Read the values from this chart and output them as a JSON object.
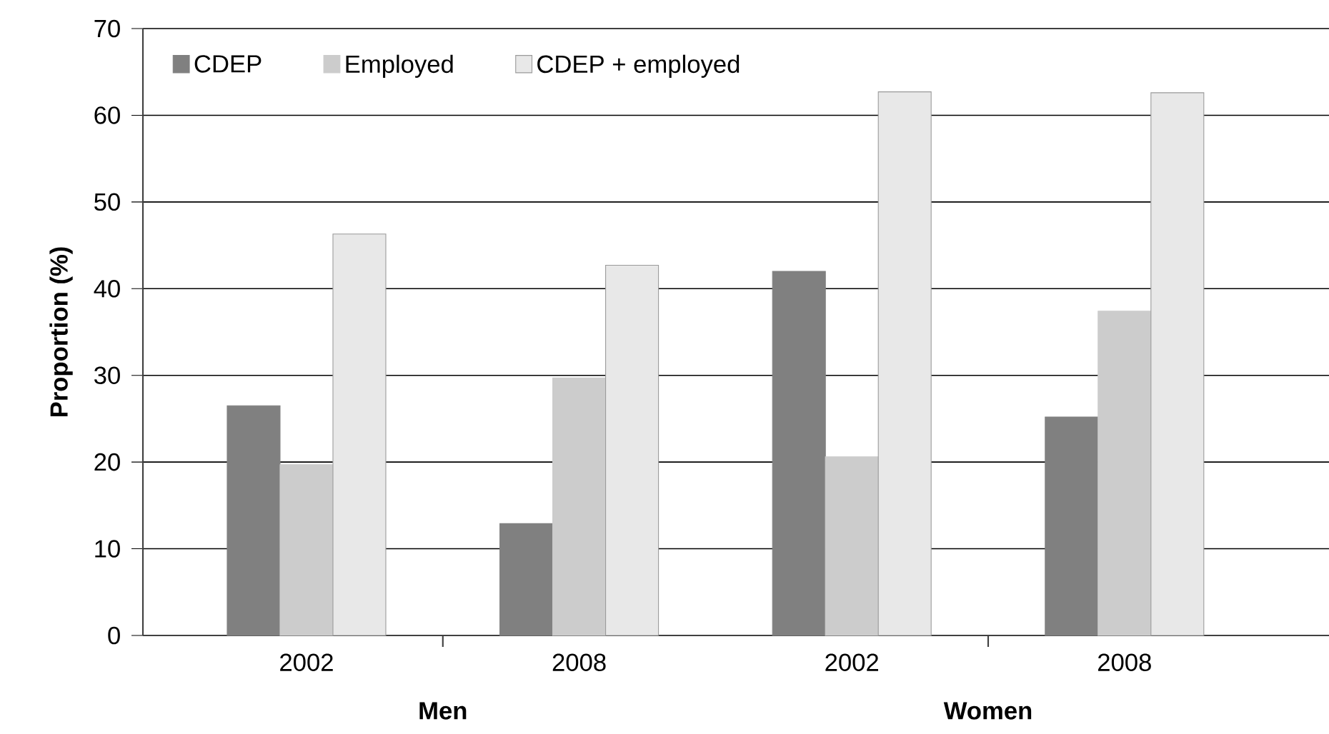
{
  "chart_data": {
    "type": "bar",
    "ylabel": "Proportion (%)",
    "categories": [
      "2002",
      "2008",
      "2002",
      "2008"
    ],
    "series": [
      {
        "name": "CDEP",
        "color": "#808080",
        "values": [
          26.5,
          12.9,
          42.0,
          25.2
        ]
      },
      {
        "name": "Employed",
        "color": "#cccccc",
        "values": [
          19.7,
          29.7,
          20.6,
          37.4
        ]
      },
      {
        "name": "CDEP + employed",
        "color": "#e8e8e8",
        "values": [
          46.3,
          42.7,
          62.7,
          62.6
        ]
      }
    ],
    "annotations": [
      "Men",
      "Women"
    ],
    "ylim": [
      0,
      70
    ],
    "yticks": [
      0,
      10,
      20,
      30,
      40,
      50,
      60,
      70
    ],
    "grid": "y",
    "legend": "top left"
  }
}
